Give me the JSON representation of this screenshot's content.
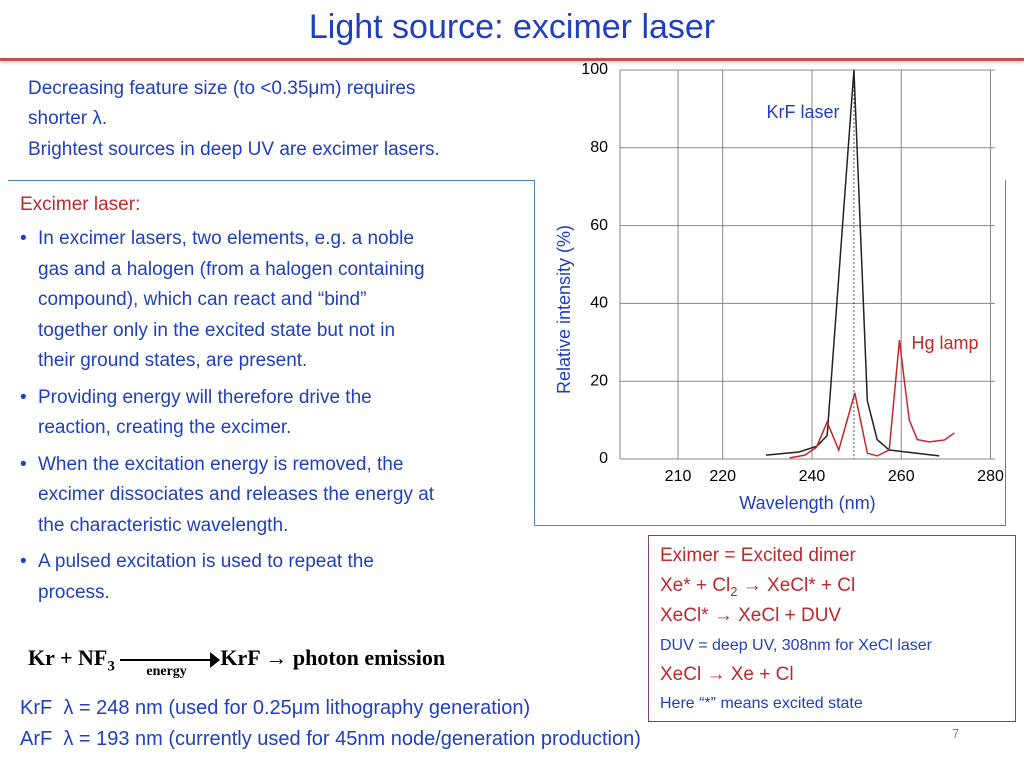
{
  "title": "Light source: excimer laser",
  "intro": [
    "Decreasing feature size (to <0.35μm) requires",
    "shorter λ.",
    "Brightest sources in deep UV are excimer lasers."
  ],
  "excimer_box": {
    "heading": "Excimer laser:",
    "bullets": [
      [
        "In excimer lasers, two elements, e.g. a noble",
        "gas and a halogen (from a halogen containing",
        "compound), which can react and “bind”",
        "together only in the excited state but not in",
        "their ground states, are present."
      ],
      [
        "Providing energy will therefore drive the",
        "reaction, creating the excimer."
      ],
      [
        "When the excitation energy is removed, the",
        "excimer dissociates and releases the energy at",
        "the characteristic wavelength."
      ],
      [
        "A pulsed excitation is used to repeat the",
        "process."
      ]
    ]
  },
  "equation": {
    "reactant1": "Kr",
    "plus": "+",
    "reactant2": "NF",
    "subscript": "3",
    "condition": "energy",
    "product": "KrF",
    "result": "photon emission"
  },
  "notes": [
    "KrF  λ = 248 nm (used for 0.25μm lithography generation)",
    "ArF  λ = 193 nm (currently used for 45nm node/generation production)"
  ],
  "dimer_box": {
    "line1": "Eximer = Excited dimer",
    "line2": {
      "before": "Xe* + Cl",
      "subscript": "2",
      "after": " → XeCl* + Cl"
    },
    "line3": "XeCl* → XeCl + DUV",
    "line4": "DUV = deep UV, 308nm for XeCl laser",
    "line5": "XeCl → Xe + Cl",
    "line6": "Here “*” means excited state"
  },
  "page_number": "7",
  "chart_data": {
    "type": "line",
    "xlabel": "Wavelength (nm)",
    "ylabel": "Relative intensity (%)",
    "xlim": [
      197,
      281
    ],
    "xticks": [
      210,
      220,
      240,
      260,
      280
    ],
    "ylim": [
      0,
      100
    ],
    "yticks": [
      0,
      20,
      40,
      60,
      80,
      100
    ],
    "grid": true,
    "vline": 249.4,
    "series": [
      {
        "name": "KrF laser",
        "color": "#222222",
        "x": [
          229.7,
          237.1,
          241.1,
          243.4,
          249.4,
          252.4,
          254.6,
          257.3,
          268.5
        ],
        "values": [
          1,
          1.8,
          3.3,
          6,
          100,
          15,
          5,
          2.3,
          0.8
        ]
      },
      {
        "name": "Hg lamp",
        "color": "#c0282c",
        "x": [
          235,
          238.4,
          241,
          243.4,
          246,
          249.6,
          252.4,
          254.6,
          257.3,
          259.6,
          260.7,
          261.8,
          263.6,
          266.3,
          269.7,
          271.9
        ],
        "values": [
          0.3,
          1,
          3,
          9.5,
          2.3,
          17,
          1.5,
          0.8,
          2.3,
          30.6,
          20,
          10,
          5,
          4.4,
          4.9,
          6.7
        ]
      }
    ]
  }
}
